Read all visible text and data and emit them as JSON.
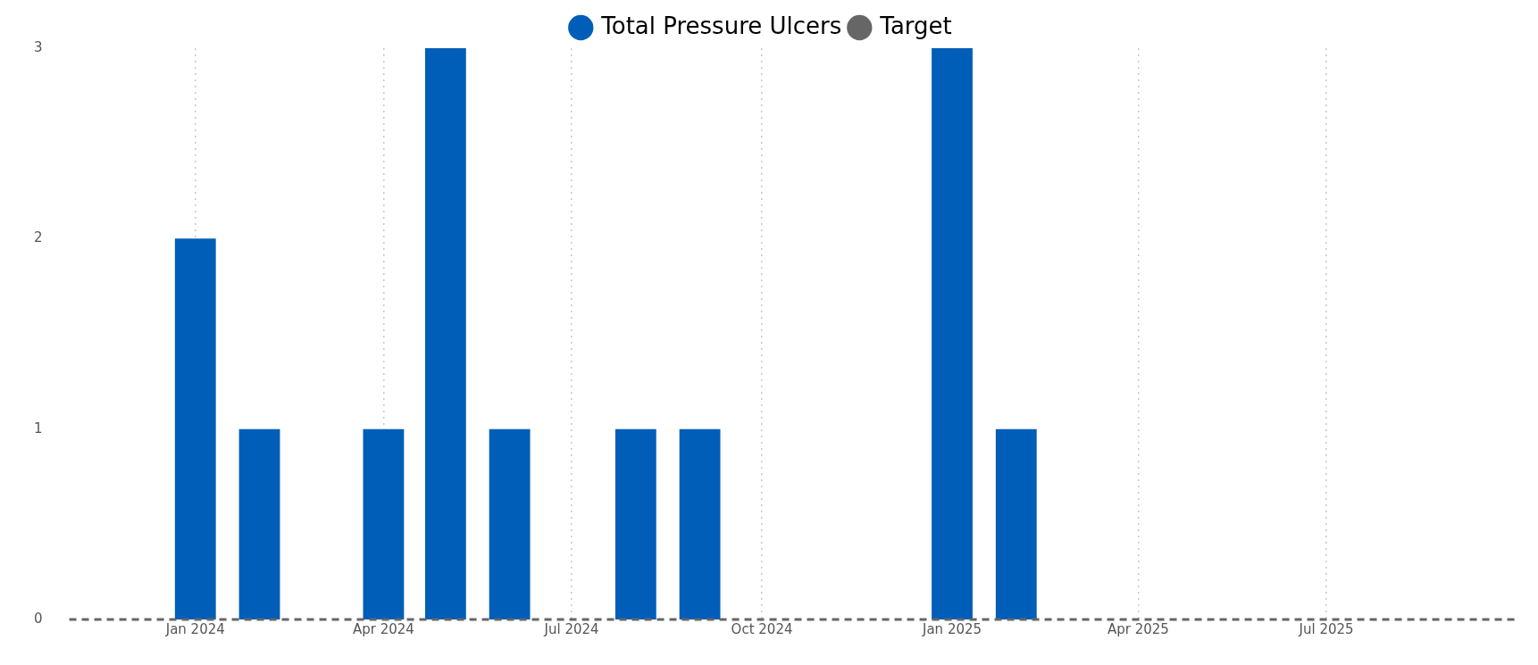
{
  "chart_data": {
    "type": "bar",
    "x": [
      "2024-01",
      "2024-02",
      "2024-04",
      "2024-05",
      "2024-06",
      "2024-08",
      "2024-09",
      "2025-01",
      "2025-02"
    ],
    "series": [
      {
        "name": "Total Pressure Ulcers",
        "color": "#005eb8",
        "values": [
          2,
          1,
          1,
          3,
          1,
          1,
          1,
          3,
          1
        ]
      },
      {
        "name": "Target",
        "type": "line",
        "color": "#666666",
        "x": [
          "2023-11",
          "2025-10"
        ],
        "values": [
          0,
          0
        ],
        "line_style": "dashed",
        "marker": "none"
      }
    ],
    "xlim": [
      "2023-11",
      "2025-10"
    ],
    "xticks": [
      {
        "value": "2024-01",
        "label": "Jan 2024"
      },
      {
        "value": "2024-04",
        "label": "Apr 2024"
      },
      {
        "value": "2024-07",
        "label": "Jul 2024"
      },
      {
        "value": "2024-10",
        "label": "Oct 2024"
      },
      {
        "value": "2025-01",
        "label": "Jan 2025"
      },
      {
        "value": "2025-04",
        "label": "Apr 2025"
      },
      {
        "value": "2025-07",
        "label": "Jul 2025"
      }
    ],
    "ylim": [
      0,
      3
    ],
    "yticks": [
      0,
      1,
      2,
      3
    ],
    "grid": "x",
    "legend": "top"
  }
}
